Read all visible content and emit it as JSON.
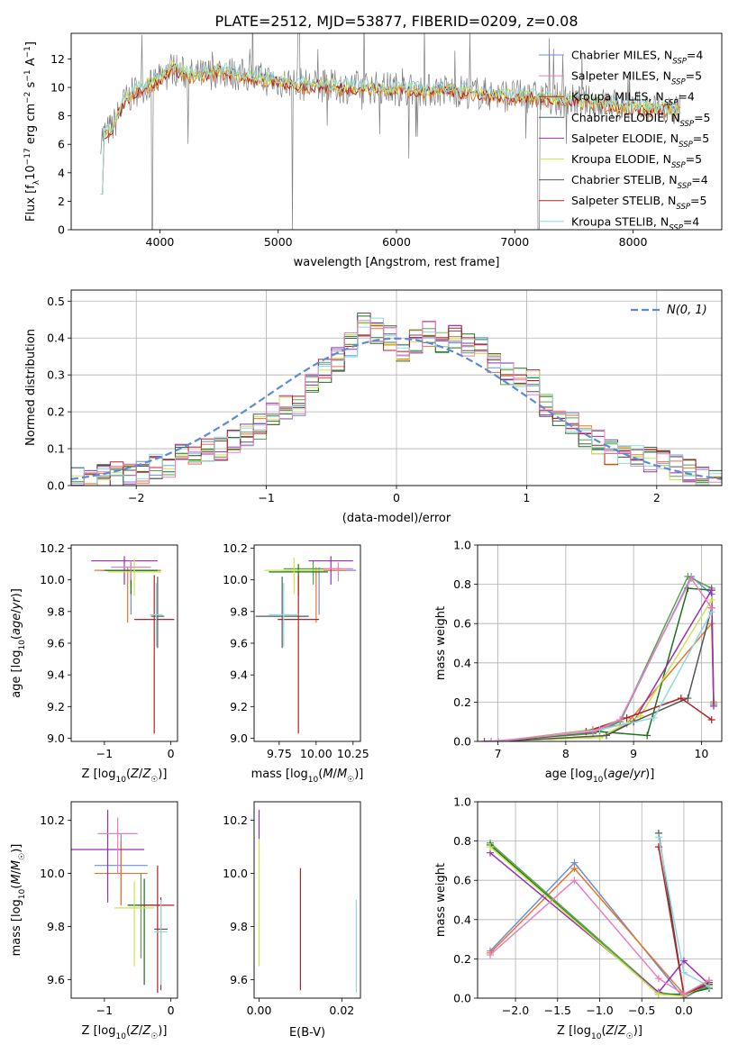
{
  "title": "PLATE=2512, MJD=53877, FIBERID=0209, z=0.08",
  "colors": {
    "series": [
      "#6b8fd6",
      "#e8742a",
      "#59a14f",
      "#1e6e1e",
      "#9b2fb2",
      "#c8e64a",
      "#555555",
      "#b22222",
      "#8fd8e0",
      "#e87fc0"
    ],
    "legend": [
      "#6b8fd6",
      "#e87fc0",
      "#b22222",
      "#2b5e8c",
      "#9b2fb2",
      "#d4e84a",
      "#555555",
      "#b22222",
      "#8fd8e0"
    ]
  },
  "chart_data": [
    {
      "id": "spectrum",
      "type": "line",
      "xlabel": "wavelength [Angstrom, rest frame]",
      "ylabel": "Flux [f_λ10^-17 erg cm^-2 s^-1 A^-1]",
      "xlim": [
        3250,
        8750
      ],
      "ylim": [
        0,
        13.8
      ],
      "xticks": [
        4000,
        5000,
        6000,
        7000,
        8000
      ],
      "yticks": [
        0,
        2,
        4,
        6,
        8,
        10,
        12
      ],
      "legend_position": "top-right",
      "legend": [
        {
          "label": "Chabrier MILES, N",
          "sub": "SSP",
          "tail": "=4"
        },
        {
          "label": "Salpeter MILES, N",
          "sub": "SSP",
          "tail": "=5"
        },
        {
          "label": "Kroupa MILES, N",
          "sub": "SSP",
          "tail": "=4"
        },
        {
          "label": "Chabrier ELODIE, N",
          "sub": "SSP",
          "tail": "=5"
        },
        {
          "label": "Salpeter ELODIE, N",
          "sub": "SSP",
          "tail": "=5"
        },
        {
          "label": "Kroupa ELODIE, N",
          "sub": "SSP",
          "tail": "=5"
        },
        {
          "label": "Chabrier STELIB, N",
          "sub": "SSP",
          "tail": "=4"
        },
        {
          "label": "Salpeter STELIB, N",
          "sub": "SSP",
          "tail": "=5"
        },
        {
          "label": "Kroupa STELIB, N",
          "sub": "SSP",
          "tail": "=4"
        }
      ],
      "continuum": [
        [
          3500,
          6.5
        ],
        [
          3600,
          7.2
        ],
        [
          3700,
          9.0
        ],
        [
          3800,
          9.8
        ],
        [
          3900,
          10.2
        ],
        [
          4000,
          10.5
        ],
        [
          4100,
          11.4
        ],
        [
          4200,
          11.0
        ],
        [
          4300,
          10.8
        ],
        [
          4400,
          10.9
        ],
        [
          4500,
          11.2
        ],
        [
          4600,
          11.0
        ],
        [
          4800,
          10.7
        ],
        [
          5000,
          10.4
        ],
        [
          5200,
          10.2
        ],
        [
          5400,
          10.1
        ],
        [
          5600,
          10.0
        ],
        [
          5800,
          10.0
        ],
        [
          6000,
          9.9
        ],
        [
          6200,
          9.8
        ],
        [
          6400,
          9.8
        ],
        [
          6600,
          9.7
        ],
        [
          6800,
          9.5
        ],
        [
          7000,
          9.4
        ],
        [
          7200,
          9.3
        ],
        [
          7400,
          9.1
        ],
        [
          7600,
          9.0
        ],
        [
          7800,
          8.8
        ],
        [
          8000,
          8.6
        ],
        [
          8200,
          8.5
        ],
        [
          8400,
          8.4
        ]
      ]
    },
    {
      "id": "residuals",
      "type": "line",
      "xlabel": "(data-model)/error",
      "ylabel": "Normed distribution",
      "xlim": [
        -2.5,
        2.5
      ],
      "ylim": [
        0,
        0.53
      ],
      "xticks": [
        -2,
        -1,
        0,
        1,
        2
      ],
      "yticks": [
        0.0,
        0.1,
        0.2,
        0.3,
        0.4,
        0.5
      ],
      "grid": true,
      "legend_position": "top-right",
      "legend_label": "N(0, 1)",
      "bin_edges_start": -2.5,
      "bin_width": 0.1,
      "hist_heights": [
        0.02,
        0.02,
        0.025,
        0.03,
        0.035,
        0.04,
        0.05,
        0.045,
        0.08,
        0.09,
        0.1,
        0.1,
        0.12,
        0.14,
        0.16,
        0.2,
        0.21,
        0.22,
        0.27,
        0.31,
        0.34,
        0.38,
        0.44,
        0.42,
        0.4,
        0.37,
        0.39,
        0.41,
        0.39,
        0.4,
        0.38,
        0.37,
        0.34,
        0.3,
        0.29,
        0.28,
        0.22,
        0.19,
        0.17,
        0.13,
        0.12,
        0.09,
        0.08,
        0.08,
        0.07,
        0.06,
        0.05,
        0.04,
        0.03,
        0.02
      ]
    },
    {
      "id": "age-vs-Z",
      "type": "scatter",
      "xlabel": "Z [log10(Z/Z☉)]",
      "ylabel": "age  [log10(age/yr)]",
      "xlim": [
        -1.5,
        0.1
      ],
      "ylim": [
        8.98,
        10.22
      ],
      "xticks": [
        -1,
        0
      ],
      "yticks": [
        9.0,
        9.2,
        9.4,
        9.6,
        9.8,
        10.0,
        10.2
      ],
      "points": [
        {
          "x": -0.6,
          "y": 10.06,
          "xerr": 0.45,
          "yerr": [
            0.28,
            0.02
          ]
        },
        {
          "x": -0.65,
          "y": 10.06,
          "xerr": 0.5,
          "yerr": [
            0.33,
            0.02
          ]
        },
        {
          "x": -0.6,
          "y": 10.06,
          "xerr": 0.35,
          "yerr": [
            0.1,
            0.05
          ]
        },
        {
          "x": -0.6,
          "y": 10.06,
          "xerr": 0.4,
          "yerr": [
            0.15,
            0.05
          ]
        },
        {
          "x": -0.7,
          "y": 10.12,
          "xerr": 0.5,
          "yerr": [
            0.15,
            0.03
          ]
        },
        {
          "x": -0.55,
          "y": 10.05,
          "xerr": 0.4,
          "yerr": [
            0.15,
            0.08
          ]
        },
        {
          "x": -0.2,
          "y": 9.77,
          "xerr": 0.1,
          "yerr": [
            0.2,
            0.25
          ]
        },
        {
          "x": -0.25,
          "y": 9.75,
          "xerr": 0.3,
          "yerr": [
            0.72,
            0.28
          ]
        },
        {
          "x": -0.22,
          "y": 9.78,
          "xerr": 0.1,
          "yerr": [
            0.2,
            0.2
          ]
        },
        {
          "x": -0.6,
          "y": 10.08,
          "xerr": 0.3,
          "yerr": [
            0.08,
            0.04
          ]
        }
      ]
    },
    {
      "id": "age-vs-mass",
      "type": "scatter",
      "xlabel": "mass [log10(M/M☉)]",
      "ylabel": "",
      "xlim": [
        9.58,
        10.3
      ],
      "ylim": [
        8.98,
        10.22
      ],
      "xticks": [
        9.75,
        10.0,
        10.25
      ],
      "yticks": [
        9.0,
        9.2,
        9.4,
        9.6,
        9.8,
        10.0,
        10.2
      ],
      "points": [
        {
          "x": 10.02,
          "y": 10.06,
          "xerr": 0.25,
          "yerr": [
            0.28,
            0.02
          ]
        },
        {
          "x": 10.0,
          "y": 10.06,
          "xerr": 0.2,
          "yerr": [
            0.33,
            0.02
          ]
        },
        {
          "x": 9.98,
          "y": 10.07,
          "xerr": 0.2,
          "yerr": [
            0.1,
            0.05
          ]
        },
        {
          "x": 9.88,
          "y": 10.05,
          "xerr": 0.2,
          "yerr": [
            0.15,
            0.05
          ]
        },
        {
          "x": 10.1,
          "y": 10.12,
          "xerr": 0.15,
          "yerr": [
            0.15,
            0.03
          ]
        },
        {
          "x": 9.85,
          "y": 10.06,
          "xerr": 0.2,
          "yerr": [
            0.15,
            0.08
          ]
        },
        {
          "x": 9.77,
          "y": 9.77,
          "xerr": 0.18,
          "yerr": [
            0.2,
            0.25
          ]
        },
        {
          "x": 9.88,
          "y": 9.75,
          "xerr": 0.14,
          "yerr": [
            0.72,
            0.28
          ]
        },
        {
          "x": 9.78,
          "y": 9.78,
          "xerr": 0.1,
          "yerr": [
            0.2,
            0.2
          ]
        },
        {
          "x": 10.15,
          "y": 10.07,
          "xerr": 0.1,
          "yerr": [
            0.08,
            0.04
          ]
        }
      ]
    },
    {
      "id": "weight-vs-age",
      "type": "line",
      "xlabel": "age  [log10(age/yr)]",
      "ylabel": "mass weight",
      "xlim": [
        6.7,
        10.3
      ],
      "ylim": [
        0.0,
        1.0
      ],
      "xticks": [
        7,
        8,
        9,
        10
      ],
      "yticks": [
        0.0,
        0.2,
        0.4,
        0.6,
        0.8,
        1.0
      ],
      "grid": true,
      "series": [
        {
          "x": [
            7.0,
            8.3,
            8.8,
            9.85,
            10.15,
            10.18
          ],
          "y": [
            0.0,
            0.05,
            0.1,
            0.84,
            0.75,
            0.2
          ]
        },
        {
          "x": [
            7.0,
            8.4,
            8.9,
            10.15,
            10.18
          ],
          "y": [
            0.0,
            0.06,
            0.09,
            0.6,
            0.2
          ]
        },
        {
          "x": [
            6.9,
            8.4,
            8.8,
            9.8,
            10.15,
            10.18
          ],
          "y": [
            0.0,
            0.04,
            0.1,
            0.84,
            0.78,
            0.19
          ]
        },
        {
          "x": [
            7.0,
            8.5,
            9.2,
            9.8,
            10.15
          ],
          "y": [
            0.0,
            0.05,
            0.03,
            0.78,
            0.77
          ]
        },
        {
          "x": [
            6.8,
            8.5,
            9.0,
            10.15,
            10.18
          ],
          "y": [
            0.0,
            0.02,
            0.1,
            0.77,
            0.18
          ]
        },
        {
          "x": [
            6.9,
            8.5,
            9.1,
            10.15
          ],
          "y": [
            0.0,
            0.02,
            0.13,
            0.72
          ]
        },
        {
          "x": [
            7.0,
            8.6,
            9.0,
            9.8,
            10.15
          ],
          "y": [
            0.0,
            0.03,
            0.1,
            0.22,
            0.68
          ]
        },
        {
          "x": [
            7.0,
            8.3,
            8.9,
            9.7,
            10.15
          ],
          "y": [
            0.0,
            0.05,
            0.12,
            0.22,
            0.11
          ]
        },
        {
          "x": [
            7.0,
            8.5,
            9.3,
            10.15
          ],
          "y": [
            0.0,
            0.06,
            0.12,
            0.66
          ]
        },
        {
          "x": [
            6.9,
            8.4,
            8.8,
            9.85,
            10.15
          ],
          "y": [
            0.0,
            0.05,
            0.11,
            0.83,
            0.68
          ]
        }
      ]
    },
    {
      "id": "mass-vs-Z",
      "type": "scatter",
      "xlabel": "Z [log10(Z/Z☉)]",
      "ylabel": "mass [log10(M/M☉)]",
      "xlim": [
        -1.5,
        0.1
      ],
      "ylim": [
        9.53,
        10.27
      ],
      "xticks": [
        -1,
        0
      ],
      "yticks": [
        9.6,
        9.8,
        10.0,
        10.2
      ],
      "points": [
        {
          "x": -0.75,
          "y": 10.03,
          "xerr": 0.4,
          "yerr": [
            0.15,
            0.12
          ]
        },
        {
          "x": -0.75,
          "y": 10.0,
          "xerr": 0.4,
          "yerr": [
            0.12,
            0.12
          ]
        },
        {
          "x": -0.45,
          "y": 9.88,
          "xerr": 0.2,
          "yerr": [
            0.2,
            0.12
          ]
        },
        {
          "x": -0.4,
          "y": 9.88,
          "xerr": 0.25,
          "yerr": [
            0.3,
            0.1
          ]
        },
        {
          "x": -0.95,
          "y": 10.09,
          "xerr": 0.55,
          "yerr": [
            0.2,
            0.15
          ]
        },
        {
          "x": -0.55,
          "y": 9.87,
          "xerr": 0.3,
          "yerr": [
            0.22,
            0.1
          ]
        },
        {
          "x": -0.15,
          "y": 9.79,
          "xerr": 0.1,
          "yerr": [
            0.23,
            0.12
          ]
        },
        {
          "x": -0.2,
          "y": 9.88,
          "xerr": 0.25,
          "yerr": [
            0.33,
            0.15
          ]
        },
        {
          "x": -0.15,
          "y": 9.78,
          "xerr": 0.1,
          "yerr": [
            0.2,
            0.12
          ]
        },
        {
          "x": -0.8,
          "y": 10.15,
          "xerr": 0.3,
          "yerr": [
            0.15,
            0.06
          ]
        }
      ]
    },
    {
      "id": "mass-vs-EBV",
      "type": "scatter",
      "xlabel": "E(B-V)",
      "ylabel": "",
      "xlim": [
        -0.0012,
        0.0245
      ],
      "ylim": [
        9.53,
        10.27
      ],
      "xticks": [
        0.0,
        0.02
      ],
      "yticks": [
        9.6,
        9.8,
        10.0,
        10.2
      ],
      "segments": [
        {
          "x": 0.0,
          "y0": 9.65,
          "y1": 10.13
        },
        {
          "x": 0.0,
          "y0": 10.13,
          "y1": 10.24
        },
        {
          "x": 0.01,
          "y0": 9.56,
          "y1": 10.02
        },
        {
          "x": 0.0235,
          "y0": 9.55,
          "y1": 9.9
        }
      ]
    },
    {
      "id": "weight-vs-Z",
      "type": "line",
      "xlabel": "Z [log10(Z/Z☉)]",
      "ylabel": "mass weight",
      "xlim": [
        -2.45,
        0.45
      ],
      "ylim": [
        0.0,
        1.0
      ],
      "xticks": [
        -2.0,
        -1.5,
        -1.0,
        -0.5,
        0.0
      ],
      "yticks": [
        0.0,
        0.2,
        0.4,
        0.6,
        0.8,
        1.0
      ],
      "grid": true,
      "series": [
        {
          "x": [
            -2.3,
            -1.3,
            0.0,
            0.3
          ],
          "y": [
            0.24,
            0.69,
            0.0,
            0.07
          ]
        },
        {
          "x": [
            -2.3,
            -1.3,
            0.0,
            0.3
          ],
          "y": [
            0.23,
            0.66,
            0.02,
            0.09
          ]
        },
        {
          "x": [
            -2.3,
            -0.3,
            0.0,
            0.3
          ],
          "y": [
            0.79,
            0.03,
            0.01,
            0.06
          ]
        },
        {
          "x": [
            -2.3,
            -0.3,
            0.0,
            0.3
          ],
          "y": [
            0.78,
            0.02,
            0.02,
            0.05
          ]
        },
        {
          "x": [
            -2.3,
            -0.3,
            0.0,
            0.3
          ],
          "y": [
            0.74,
            0.03,
            0.19,
            0.07
          ]
        },
        {
          "x": [
            -2.3,
            -0.3,
            0.0,
            0.3
          ],
          "y": [
            0.77,
            0.02,
            0.01,
            0.08
          ]
        },
        {
          "x": [
            -0.3,
            0.0,
            0.3
          ],
          "y": [
            0.84,
            0.02,
            0.08
          ]
        },
        {
          "x": [
            -0.3,
            0.0,
            0.3
          ],
          "y": [
            0.77,
            0.02,
            0.07
          ]
        },
        {
          "x": [
            -0.3,
            0.0,
            0.3
          ],
          "y": [
            0.82,
            0.13,
            0.06
          ]
        },
        {
          "x": [
            -2.3,
            -1.3,
            -0.3,
            0.0,
            0.3
          ],
          "y": [
            0.22,
            0.6,
            0.1,
            0.02,
            0.09
          ]
        }
      ]
    }
  ]
}
